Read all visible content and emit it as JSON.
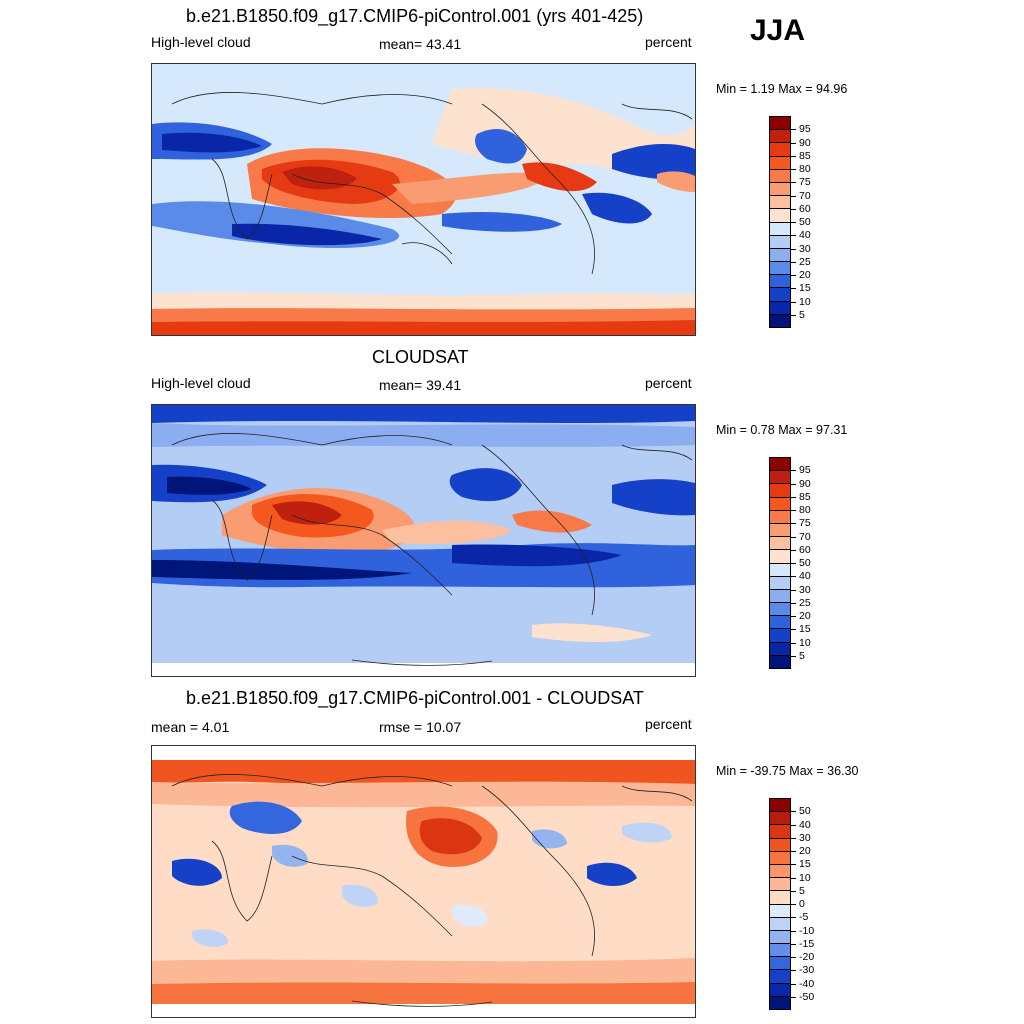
{
  "season": "JJA",
  "panels": [
    {
      "title": "b.e21.B1850.f09_g17.CMIP6-piControl.001 (yrs 401-425)",
      "left_label": "High-level cloud",
      "center_label": "mean=  43.41",
      "right_label": "percent",
      "minmax": "Min =   1.19 Max =  94.96"
    },
    {
      "title": "CLOUDSAT",
      "left_label": "High-level cloud",
      "center_label": "mean=  39.41",
      "right_label": "percent",
      "minmax": "Min =   0.78 Max =  97.31"
    },
    {
      "title": "b.e21.B1850.f09_g17.CMIP6-piControl.001 - CLOUDSAT",
      "left_label": "mean =   4.01",
      "center_label": "rmse =  10.07",
      "right_label": "percent",
      "minmax": "Min = -39.75 Max =  36.30"
    }
  ],
  "colorbars": {
    "field": {
      "labels": [
        "95",
        "90",
        "85",
        "80",
        "75",
        "70",
        "60",
        "50",
        "40",
        "30",
        "25",
        "20",
        "15",
        "10",
        "5"
      ],
      "colors": [
        "#8b0000",
        "#c0200e",
        "#e63a12",
        "#f4581e",
        "#f77a48",
        "#fa9c72",
        "#fcbfa0",
        "#fde2d0",
        "#d6e8fb",
        "#b4cdf4",
        "#8aaef0",
        "#5a8be8",
        "#2f62dc",
        "#1540c8",
        "#0a26a8",
        "#00157a"
      ]
    },
    "diff": {
      "labels": [
        "50",
        "40",
        "30",
        "20",
        "15",
        "10",
        "5",
        "0",
        "-5",
        "-10",
        "-15",
        "-20",
        "-30",
        "-40",
        "-50"
      ],
      "colors": [
        "#8b0000",
        "#b81c0c",
        "#dc3512",
        "#f05520",
        "#f7743f",
        "#fa9668",
        "#fcb896",
        "#fedcc6",
        "#dfebfb",
        "#bfd3f6",
        "#93b4f1",
        "#638fe9",
        "#3466de",
        "#1541c9",
        "#0a27a9",
        "#00157a"
      ]
    }
  }
}
